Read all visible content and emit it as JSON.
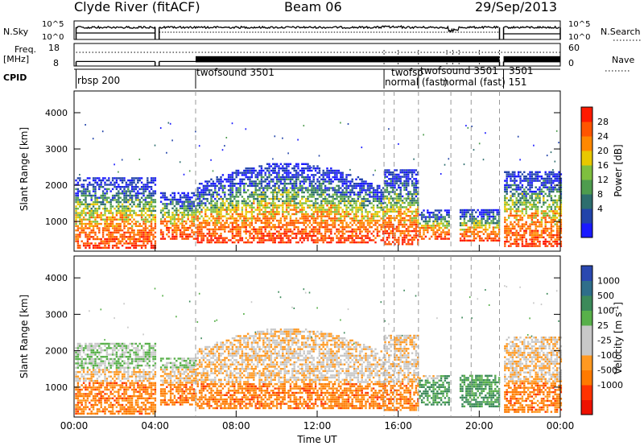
{
  "header": {
    "station": "Clyde River (fitACF)",
    "beam": "Beam 06",
    "date": "29/Sep/2013"
  },
  "left_labels": {
    "nsky": "N.Sky",
    "freq": "Freq.",
    "freq_unit": "[MHz]",
    "cpid": "CPID"
  },
  "right_labels": {
    "nsearch": "N.Search",
    "nave": "Nave"
  },
  "noise_axis": {
    "left_ticks": [
      "10^5",
      "10^0"
    ],
    "right_ticks": [
      "10^5",
      "10^0"
    ]
  },
  "freq_axis": {
    "left_ticks": [
      "18",
      "8"
    ],
    "right_ticks": [
      "60",
      "0"
    ]
  },
  "cpid_labels": [
    {
      "text": "rbsp 200",
      "t": 0.1
    },
    {
      "text": "twofsound 3501",
      "t": 6.0
    },
    {
      "text": "twofso",
      "t": 15.3
    },
    {
      "text": "normal (fast)",
      "t": 15.3
    },
    {
      "text": "twofsound 3501",
      "t": 17.0
    },
    {
      "text": "normal (fast) 151",
      "t": 17.0
    },
    {
      "text": "3501",
      "t": 21.2
    }
  ],
  "xaxis": {
    "label": "Time UT",
    "ticks": [
      "00:00",
      "04:00",
      "08:00",
      "12:00",
      "16:00",
      "20:00",
      "00:00"
    ],
    "tick_hours": [
      0,
      4,
      8,
      12,
      16,
      20,
      24
    ]
  },
  "yaxis": {
    "label": "Slant Range [km]",
    "ticks": [
      "1000",
      "2000",
      "3000",
      "4000"
    ],
    "tick_values": [
      1000,
      2000,
      3000,
      4000
    ],
    "range": [
      180,
      4600
    ]
  },
  "power_colorbar": {
    "label": "Power [dB]",
    "ticks": [
      "28",
      "24",
      "20",
      "16",
      "12",
      "8",
      "4"
    ],
    "colors": [
      "#1a1aff",
      "#2244aa",
      "#2d6e6e",
      "#4e9c4e",
      "#7fbf3f",
      "#e8c800",
      "#ff8800",
      "#ff5500",
      "#ff1a00"
    ]
  },
  "velocity_colorbar": {
    "label": "Velocity [m s",
    "label_sup": "-1",
    "label_end": "]",
    "ticks": [
      "1000",
      "500",
      "100",
      "25",
      "-25",
      "-100",
      "-500",
      "-1000"
    ],
    "colors": [
      "#2a48b0",
      "#2f6e8a",
      "#3c8a5a",
      "#58b04a",
      "#c8c8c8",
      "#c8c8c8",
      "#ff9922",
      "#ff7a00",
      "#ff3300",
      "#ee1100"
    ]
  },
  "chart_data": [
    {
      "type": "line",
      "title": "N.Sky / N.Search",
      "x_range_hours": [
        0,
        24
      ],
      "segments": [
        [
          0.1,
          4.0
        ],
        [
          4.2,
          21.0
        ],
        [
          21.2,
          24.0
        ]
      ],
      "typical_level": "10^4"
    },
    {
      "type": "line",
      "title": "Freq. [MHz] / Nave",
      "freq_segments": [
        {
          "start": 0.1,
          "end": 4.0,
          "mhz": 10
        },
        {
          "start": 4.2,
          "end": 6.0,
          "mhz": 10
        },
        {
          "start": 6.0,
          "end": 21.0,
          "mhz_alternating": [
            10,
            12
          ]
        },
        {
          "start": 21.2,
          "end": 24.0,
          "mhz_alternating": [
            10,
            12
          ]
        }
      ]
    },
    {
      "type": "heatmap",
      "title": "Power [dB]",
      "x_range_hours": [
        0,
        24
      ],
      "y_range_km": [
        180,
        4600
      ],
      "value_range": [
        0,
        30
      ],
      "dashed_markers_hours": [
        6.0,
        15.3,
        15.8,
        17.0,
        18.6,
        19.6,
        21.0
      ]
    },
    {
      "type": "heatmap",
      "title": "Velocity [m s-1]",
      "x_range_hours": [
        0,
        24
      ],
      "y_range_km": [
        180,
        4600
      ],
      "value_range": [
        -1000,
        1000
      ],
      "dashed_markers_hours": [
        6.0,
        15.3,
        15.8,
        17.0,
        18.6,
        19.6,
        21.0
      ]
    }
  ]
}
